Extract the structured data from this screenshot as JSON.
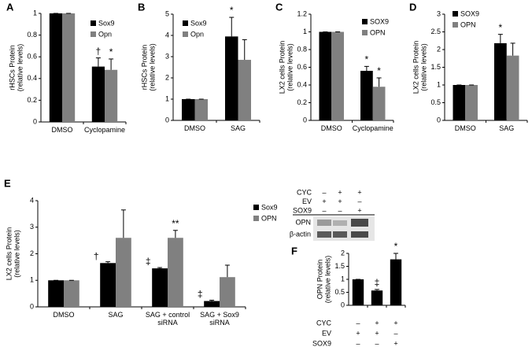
{
  "chart_data": [
    {
      "type": "bar",
      "panel": "A",
      "ylabel": [
        "rHSCs Protein",
        "(relative levels)"
      ],
      "categories": [
        "DMSO",
        "Cyclopamine"
      ],
      "series": [
        {
          "name": "Sox9",
          "color": "#000000",
          "values": [
            1,
            0.51
          ],
          "errors": [
            0,
            0.08
          ],
          "markers": [
            null,
            "†"
          ]
        },
        {
          "name": "Opn",
          "color": "#808080",
          "values": [
            1,
            0.48
          ],
          "errors": [
            0,
            0.1
          ],
          "markers": [
            null,
            "*"
          ]
        }
      ],
      "ylim": [
        0,
        1
      ],
      "yticks": [
        0,
        0.2,
        0.4,
        0.6,
        0.8,
        1
      ],
      "legend": "upper right"
    },
    {
      "type": "bar",
      "panel": "B",
      "ylabel": [
        "rHSCs Protein",
        "(relative levels)"
      ],
      "categories": [
        "DMSO",
        "SAG"
      ],
      "series": [
        {
          "name": "Sox9",
          "color": "#000000",
          "values": [
            1,
            3.95
          ],
          "errors": [
            0,
            0.9
          ],
          "markers": [
            null,
            "*"
          ]
        },
        {
          "name": "Opn",
          "color": "#808080",
          "values": [
            1,
            2.85
          ],
          "errors": [
            0,
            0.95
          ],
          "markers": [
            null,
            null
          ]
        }
      ],
      "ylim": [
        0,
        5
      ],
      "yticks": [
        0,
        1,
        2,
        3,
        4,
        5
      ],
      "legend": "upper left"
    },
    {
      "type": "bar",
      "panel": "C",
      "ylabel": [
        "LX2 cells Protein",
        "(relative levels)"
      ],
      "categories": [
        "DMSO",
        "Cyclopamine"
      ],
      "series": [
        {
          "name": "SOX9",
          "color": "#000000",
          "values": [
            1,
            0.56
          ],
          "errors": [
            0,
            0.05
          ],
          "markers": [
            null,
            "*"
          ]
        },
        {
          "name": "OPN",
          "color": "#808080",
          "values": [
            1,
            0.38
          ],
          "errors": [
            0,
            0.1
          ],
          "markers": [
            null,
            "*"
          ]
        }
      ],
      "ylim": [
        0,
        1.2
      ],
      "yticks": [
        0,
        0.2,
        0.4,
        0.6,
        0.8,
        1,
        1.2
      ],
      "legend": "upper right"
    },
    {
      "type": "bar",
      "panel": "D",
      "ylabel": [
        "LX2 cells Protein",
        "(relative levels)"
      ],
      "categories": [
        "DMSO",
        "SAG"
      ],
      "series": [
        {
          "name": "SOX9",
          "color": "#000000",
          "values": [
            1,
            2.18
          ],
          "errors": [
            0,
            0.25
          ],
          "markers": [
            null,
            "*"
          ]
        },
        {
          "name": "OPN",
          "color": "#808080",
          "values": [
            1,
            1.83
          ],
          "errors": [
            0,
            0.35
          ],
          "markers": [
            null,
            null
          ]
        }
      ],
      "ylim": [
        0,
        3
      ],
      "yticks": [
        0,
        0.5,
        1,
        1.5,
        2,
        2.5,
        3
      ],
      "legend": "upper left"
    },
    {
      "type": "bar",
      "panel": "E",
      "ylabel": [
        "LX2 cells Protein",
        "(relative levels)"
      ],
      "categories": [
        "DMSO",
        "SAG",
        "SAG + control siRNA",
        "SAG + Sox9 siRNA"
      ],
      "series": [
        {
          "name": "Sox9",
          "color": "#000000",
          "values": [
            1,
            1.65,
            1.45,
            0.22
          ],
          "errors": [
            0,
            0.05,
            0.03,
            0.03
          ],
          "markers": [
            null,
            "†",
            "‡",
            "‡"
          ]
        },
        {
          "name": "OPN",
          "color": "#808080",
          "values": [
            1,
            2.6,
            2.6,
            1.12
          ],
          "errors": [
            0,
            1.05,
            0.28,
            0.45
          ],
          "markers": [
            null,
            null,
            "**",
            null
          ]
        }
      ],
      "ylim": [
        0,
        4
      ],
      "yticks": [
        0,
        1,
        2,
        3,
        4
      ],
      "legend": "right"
    },
    {
      "type": "bar",
      "panel": "F",
      "ylabel": [
        "OPN Protein",
        "(relative levels)"
      ],
      "categories": [
        null,
        null,
        null
      ],
      "series": [
        {
          "color": "#000000",
          "values": [
            1,
            0.57,
            1.77
          ],
          "errors": [
            0,
            0.04,
            0.23
          ],
          "markers": [
            null,
            "‡",
            "*"
          ]
        }
      ],
      "ylim": [
        0,
        2
      ],
      "yticks": [
        0,
        0.5,
        1,
        1.5,
        2
      ],
      "blot": {
        "rows": [
          {
            "label": "CYC",
            "values": [
              "–",
              "+",
              "+"
            ]
          },
          {
            "label": "EV",
            "values": [
              "+",
              "+",
              "–"
            ]
          },
          {
            "label": "SOX9",
            "values": [
              "–",
              "–",
              "+"
            ]
          }
        ],
        "bands": [
          "OPN",
          "β-actin"
        ]
      },
      "conditions": [
        {
          "label": "CYC",
          "values": [
            "–",
            "+",
            "+"
          ]
        },
        {
          "label": "EV",
          "values": [
            "+",
            "+",
            "–"
          ]
        },
        {
          "label": "SOX9",
          "values": [
            "–",
            "–",
            "+"
          ]
        }
      ]
    }
  ]
}
